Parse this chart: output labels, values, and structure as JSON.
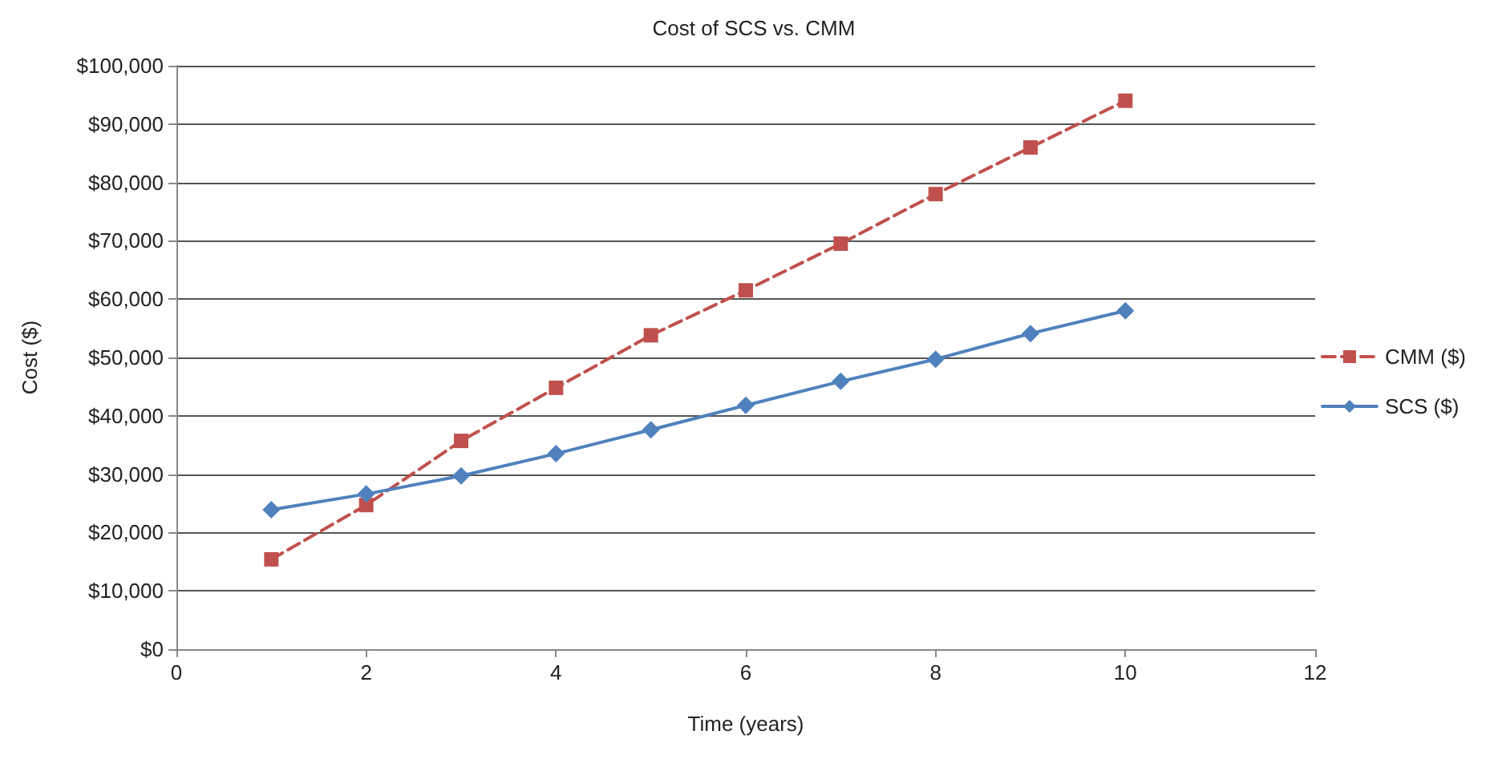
{
  "chart_data": {
    "type": "line",
    "title": "Cost of SCS vs. CMM",
    "xlabel": "Time (years)",
    "ylabel": "Cost ($)",
    "x": [
      1,
      2,
      3,
      4,
      5,
      6,
      7,
      8,
      9,
      10
    ],
    "series": [
      {
        "name": "CMM ($)",
        "color": "#c0504d",
        "marker": "square",
        "line_style": "dashed",
        "values": [
          15400,
          24700,
          35700,
          44800,
          53800,
          61500,
          69500,
          78000,
          86000,
          94000
        ]
      },
      {
        "name": "SCS ($)",
        "color": "#4f81bd",
        "marker": "diamond",
        "line_style": "solid",
        "values": [
          23900,
          26600,
          29700,
          33500,
          37600,
          41800,
          45900,
          49700,
          54100,
          58000
        ]
      }
    ],
    "xlim": [
      0,
      12
    ],
    "xticks": [
      0,
      2,
      4,
      6,
      8,
      10,
      12
    ],
    "ylim": [
      0,
      100000
    ],
    "yticks": [
      {
        "value": 0,
        "label": "$0"
      },
      {
        "value": 10000,
        "label": "$10,000"
      },
      {
        "value": 20000,
        "label": "$20,000"
      },
      {
        "value": 30000,
        "label": "$30,000"
      },
      {
        "value": 40000,
        "label": "$40,000"
      },
      {
        "value": 50000,
        "label": "$50,000"
      },
      {
        "value": 60000,
        "label": "$60,000"
      },
      {
        "value": 70000,
        "label": "$70,000"
      },
      {
        "value": 80000,
        "label": "$80,000"
      },
      {
        "value": 90000,
        "label": "$90,000"
      },
      {
        "value": 100000,
        "label": "$100,000"
      }
    ],
    "grid": "y",
    "legend": "right"
  }
}
